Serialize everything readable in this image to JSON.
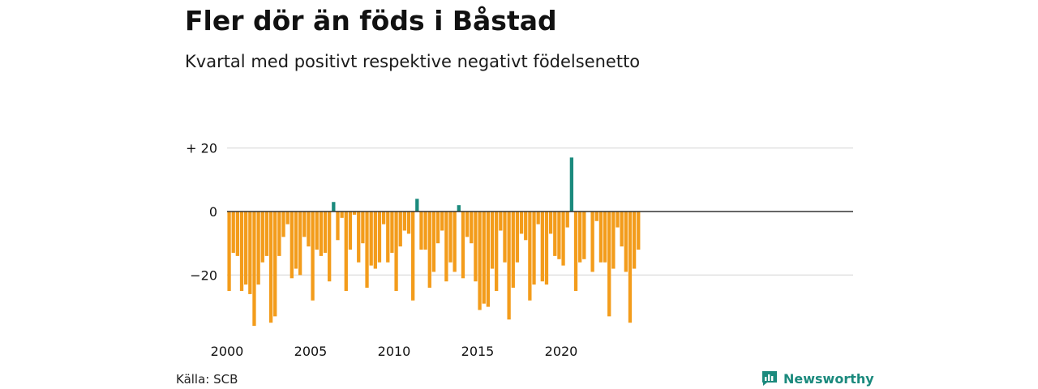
{
  "title": "Fler dör än föds i Båstad",
  "subtitle": "Kvartal med positivt respektive negativt födelsenetto",
  "source": "Källa: SCB",
  "brand": "Newsworthy",
  "colors": {
    "positive": "#1b8a7d",
    "negative": "#f39c1b",
    "grid": "#dcdcdc",
    "axis": "#333333"
  },
  "chart_data": {
    "type": "bar",
    "x_start": "2000 Q1",
    "ylim": [
      -37,
      22
    ],
    "y_ticks": [
      {
        "value": 20,
        "label": "+ 20"
      },
      {
        "value": 0,
        "label": "0"
      },
      {
        "value": -20,
        "label": "−20"
      }
    ],
    "x_ticks": [
      {
        "year": 2000,
        "label": "2000"
      },
      {
        "year": 2005,
        "label": "2005"
      },
      {
        "year": 2010,
        "label": "2010"
      },
      {
        "year": 2015,
        "label": "2015"
      },
      {
        "year": 2020,
        "label": "2020"
      }
    ],
    "values": [
      -25,
      -13,
      -14,
      -25,
      -23,
      -26,
      -36,
      -23,
      -16,
      -14,
      -35,
      -33,
      -14,
      -8,
      -4,
      -21,
      -18,
      -20,
      -8,
      -11,
      -28,
      -12,
      -14,
      -13,
      -22,
      3,
      -9,
      -2,
      -25,
      -12,
      -1,
      -16,
      -10,
      -24,
      -17,
      -18,
      -16,
      -4,
      -16,
      -13,
      -25,
      -11,
      -6,
      -7,
      -28,
      4,
      -12,
      -12,
      -24,
      -19,
      -10,
      -6,
      -22,
      -16,
      -19,
      2,
      -21,
      -8,
      -10,
      -22,
      -31,
      -29,
      -30,
      -18,
      -25,
      -6,
      -16,
      -34,
      -24,
      -16,
      -7,
      -9,
      -28,
      -23,
      -4,
      -22,
      -23,
      -7,
      -14,
      -15,
      -17,
      -5,
      17,
      -25,
      -16,
      -15,
      0,
      -19,
      -3,
      -16,
      -16,
      -33,
      -18,
      -5,
      -11,
      -19,
      -35,
      -18,
      -12
    ]
  }
}
